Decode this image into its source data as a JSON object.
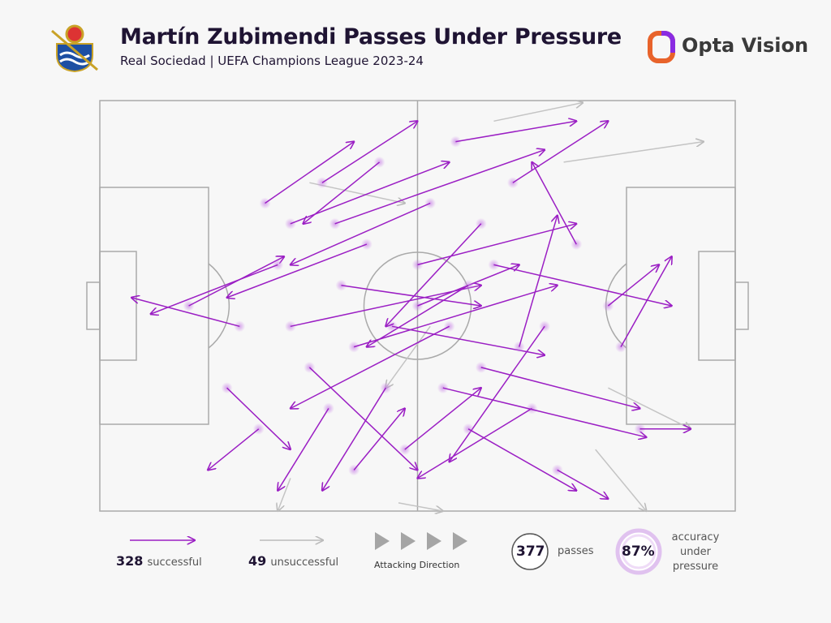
{
  "header": {
    "title": "Martín Zubimendi Passes Under Pressure",
    "subtitle": "Real Sociedad | UEFA Champions League 2023-24",
    "brand": "Opta Vision"
  },
  "pitch": {
    "xlim": [
      0,
      100
    ],
    "ylim": [
      0,
      100
    ],
    "successful": [
      [
        14,
        50,
        29,
        38
      ],
      [
        22,
        55,
        5,
        48
      ],
      [
        30,
        30,
        55,
        15
      ],
      [
        40,
        60,
        72,
        45
      ],
      [
        45,
        70,
        35,
        95
      ],
      [
        50,
        40,
        75,
        30
      ],
      [
        55,
        55,
        30,
        75
      ],
      [
        60,
        65,
        85,
        75
      ],
      [
        35,
        20,
        50,
        5
      ],
      [
        25,
        80,
        17,
        90
      ],
      [
        65,
        20,
        80,
        5
      ],
      [
        70,
        55,
        55,
        88
      ],
      [
        48,
        85,
        60,
        70
      ],
      [
        38,
        45,
        60,
        50
      ],
      [
        52,
        25,
        30,
        40
      ],
      [
        80,
        50,
        88,
        40
      ],
      [
        82,
        60,
        90,
        38
      ],
      [
        58,
        80,
        75,
        95
      ],
      [
        42,
        35,
        20,
        48
      ],
      [
        33,
        65,
        50,
        90
      ],
      [
        62,
        40,
        90,
        50
      ],
      [
        75,
        35,
        68,
        15
      ],
      [
        28,
        40,
        8,
        52
      ],
      [
        46,
        55,
        70,
        62
      ],
      [
        56,
        10,
        75,
        5
      ],
      [
        44,
        15,
        32,
        30
      ],
      [
        68,
        75,
        50,
        92
      ],
      [
        36,
        75,
        28,
        95
      ],
      [
        54,
        70,
        86,
        82
      ],
      [
        72,
        90,
        80,
        97
      ],
      [
        40,
        90,
        48,
        75
      ],
      [
        60,
        30,
        45,
        55
      ],
      [
        20,
        70,
        30,
        85
      ],
      [
        30,
        55,
        60,
        45
      ],
      [
        66,
        60,
        72,
        28
      ],
      [
        85,
        80,
        93,
        80
      ],
      [
        26,
        25,
        40,
        10
      ],
      [
        50,
        50,
        66,
        40
      ],
      [
        37,
        30,
        70,
        12
      ],
      [
        58,
        45,
        42,
        60
      ]
    ],
    "unsuccessful": [
      [
        62,
        5,
        76,
        0.5
      ],
      [
        73,
        15,
        95,
        10
      ],
      [
        80,
        70,
        93,
        80
      ],
      [
        47,
        98,
        54,
        100
      ],
      [
        30,
        92,
        28,
        100
      ],
      [
        78,
        85,
        86,
        100
      ],
      [
        33,
        20,
        48,
        25
      ],
      [
        52,
        55,
        45,
        70
      ]
    ]
  },
  "legend": {
    "successful_count": "328",
    "successful_label": "successful",
    "unsuccessful_count": "49",
    "unsuccessful_label": "unsuccessful",
    "direction": "Attacking Direction",
    "total": "377",
    "total_label": "passes",
    "accuracy": "87%",
    "accuracy_label": "accuracy under pressure"
  }
}
